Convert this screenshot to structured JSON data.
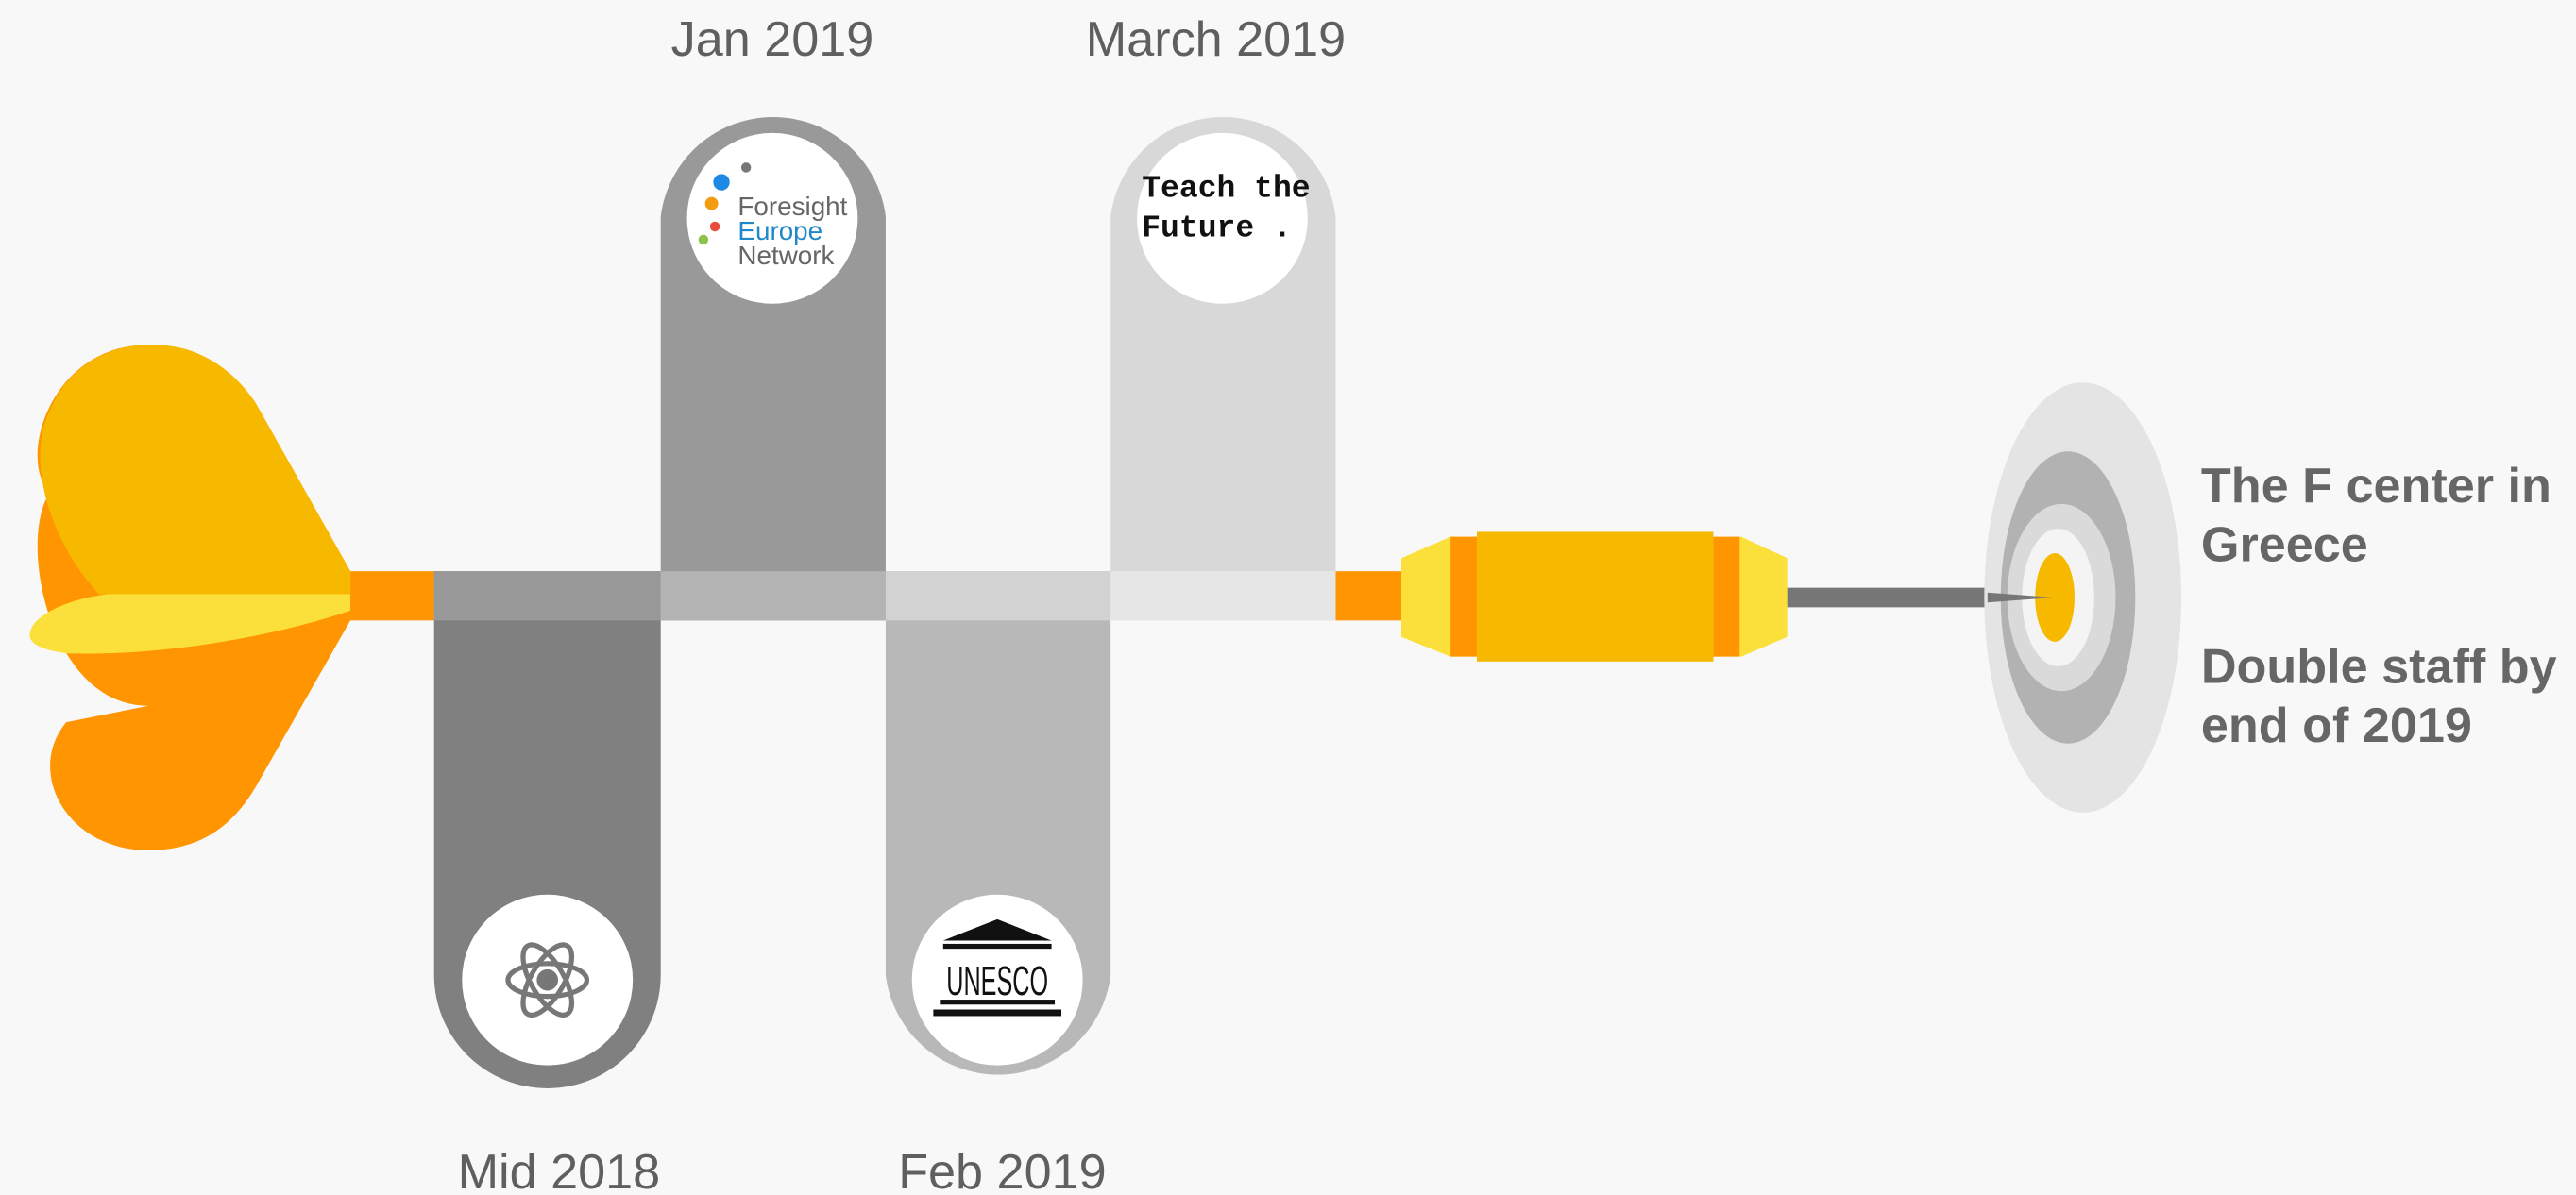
{
  "milestones": [
    {
      "date": "Mid 2018"
    },
    {
      "date": "Jan 2019",
      "logo": [
        "Foresight",
        "Europe",
        "Network"
      ]
    },
    {
      "date": "Feb 2019",
      "logo": [
        "UNESCO"
      ]
    },
    {
      "date": "March 2019",
      "logo": [
        "Teach the",
        "Future ."
      ]
    }
  ],
  "goal": {
    "lines": [
      "The F center in",
      "Greece",
      "Double staff by",
      "end of 2019"
    ]
  }
}
